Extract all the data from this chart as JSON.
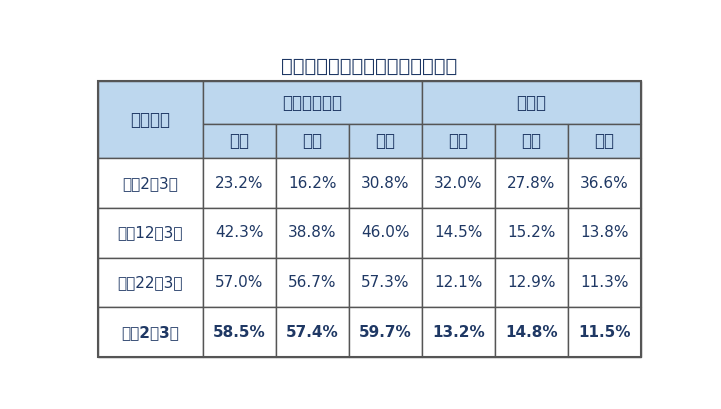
{
  "title": "高等学校卒業者の進路状況の推移",
  "header_col0": "卒業年月",
  "header_group1": "大学等進学率",
  "header_group2": "就職率",
  "subheader": [
    "全体",
    "男子",
    "女子",
    "全体",
    "男子",
    "女子"
  ],
  "rows": [
    [
      "平成2年3月",
      "23.2%",
      "16.2%",
      "30.8%",
      "32.0%",
      "27.8%",
      "36.6%"
    ],
    [
      "平成12年3月",
      "42.3%",
      "38.8%",
      "46.0%",
      "14.5%",
      "15.2%",
      "13.8%"
    ],
    [
      "平成22年3月",
      "57.0%",
      "56.7%",
      "57.3%",
      "12.1%",
      "12.9%",
      "11.3%"
    ],
    [
      "令和2年3月",
      "58.5%",
      "57.4%",
      "59.7%",
      "13.2%",
      "14.8%",
      "11.5%"
    ]
  ],
  "header_bg": "#BDD7EE",
  "data_bg": "#FFFFFF",
  "border_color": "#555555",
  "text_color": "#1F3864",
  "title_fontsize": 14,
  "header_fontsize": 12,
  "data_fontsize": 11,
  "fig_width": 7.21,
  "fig_height": 4.09,
  "dpi": 100
}
